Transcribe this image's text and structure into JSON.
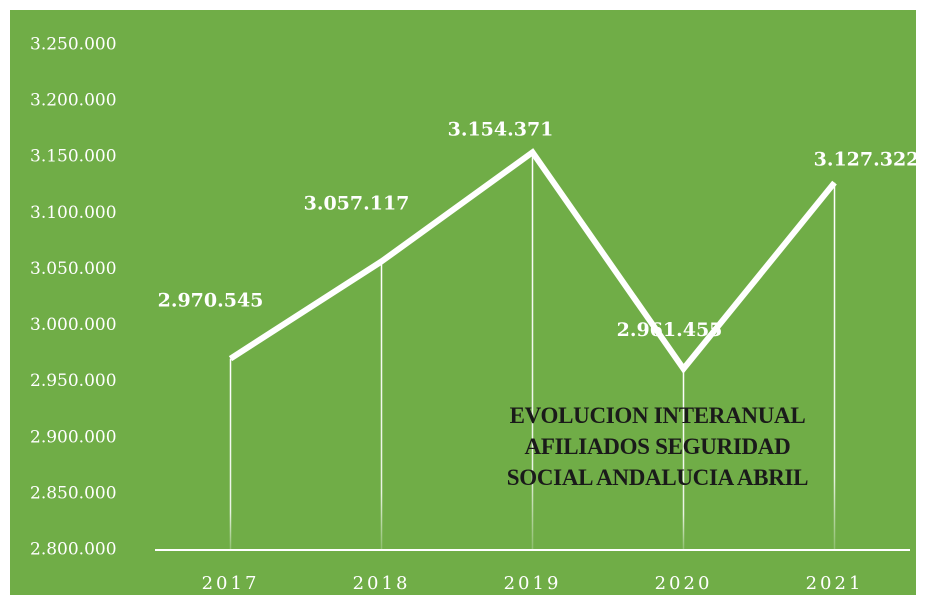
{
  "chart_data": {
    "type": "line",
    "title": "EVOLUCION INTERANUAL AFILIADOS SEGURIDAD SOCIAL ANDALUCIA ABRIL",
    "categories": [
      "2017",
      "2018",
      "2019",
      "2020",
      "2021"
    ],
    "series": [
      {
        "name": "Afiliados",
        "color": "#ffffff",
        "values": [
          2970545,
          3057117,
          3154371,
          2961455,
          3127322
        ],
        "value_labels": [
          "2.970.545",
          "3.057.117",
          "3.154.371",
          "2.961.455",
          "3.127.322"
        ]
      }
    ],
    "ylim": [
      2800000,
      3250000
    ],
    "yticks": [
      {
        "value": 2800000,
        "label": "2.800.000"
      },
      {
        "value": 2850000,
        "label": "2.850.000"
      },
      {
        "value": 2900000,
        "label": "2.900.000"
      },
      {
        "value": 2950000,
        "label": "2.950.000"
      },
      {
        "value": 3000000,
        "label": "3.000.000"
      },
      {
        "value": 3050000,
        "label": "3.050.000"
      },
      {
        "value": 3100000,
        "label": "3.100.000"
      },
      {
        "value": 3150000,
        "label": "3.150.000"
      },
      {
        "value": 3200000,
        "label": "3.200.000"
      },
      {
        "value": 3250000,
        "label": "3.250.000"
      }
    ],
    "background": "#70ad47"
  }
}
